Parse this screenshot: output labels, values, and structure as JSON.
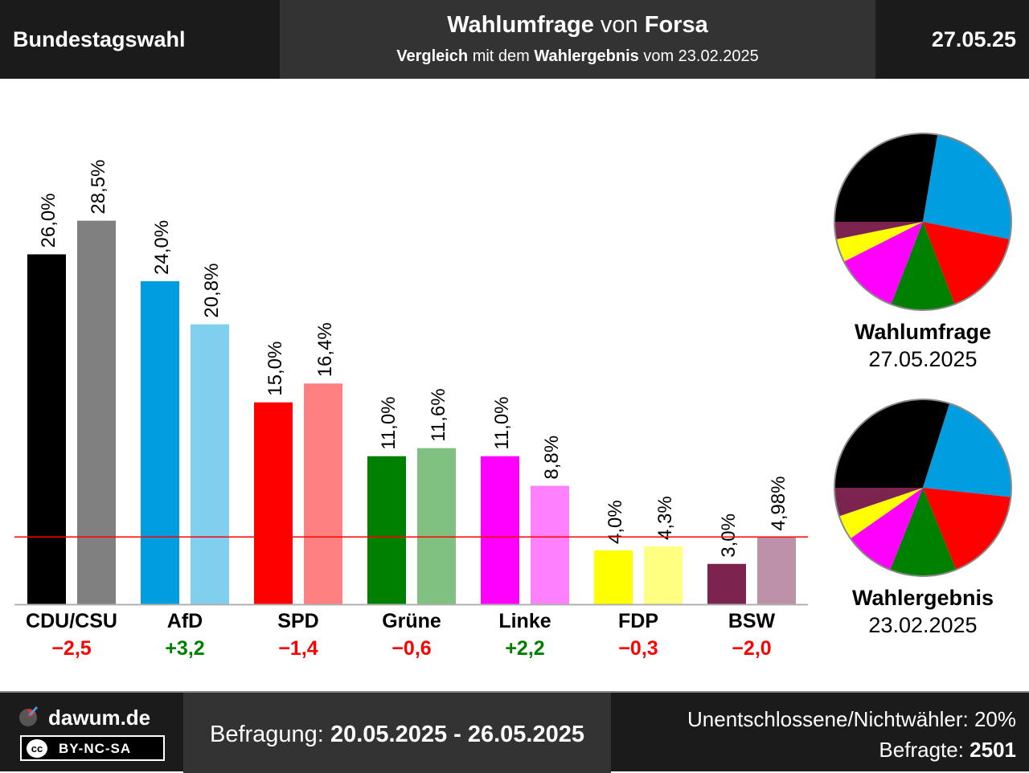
{
  "header": {
    "region": "Bundestagswahl",
    "title_a": "Wahlumfrage",
    "title_b": " von ",
    "title_c": "Forsa",
    "sub_a": "Vergleich",
    "sub_b": " mit dem ",
    "sub_c": "Wahlergebnis",
    "sub_d": " vom 23.02.2025",
    "date": "27.05.25"
  },
  "chart_data": {
    "type": "bar",
    "categories": [
      "CDU/CSU",
      "AfD",
      "SPD",
      "Grüne",
      "Linke",
      "FDP",
      "BSW"
    ],
    "series": [
      {
        "name": "Wahlumfrage",
        "values": [
          26.0,
          24.0,
          15.0,
          11.0,
          11.0,
          4.0,
          3.0
        ],
        "labels": [
          "26,0%",
          "24,0%",
          "15,0%",
          "11,0%",
          "11,0%",
          "4,0%",
          "3,0%"
        ]
      },
      {
        "name": "Wahlergebnis",
        "values": [
          28.5,
          20.8,
          16.4,
          11.6,
          8.8,
          4.3,
          4.98
        ],
        "labels": [
          "28,5%",
          "20,8%",
          "16,4%",
          "11,6%",
          "8,8%",
          "4,3%",
          "4,98%"
        ]
      }
    ],
    "colors_poll": [
      "#000000",
      "#009ee0",
      "#ff0000",
      "#008000",
      "#ff00ff",
      "#ffff00",
      "#7b2450"
    ],
    "colors_result": [
      "#808080",
      "#80cfef",
      "#ff8080",
      "#80c080",
      "#ff80ff",
      "#ffff80",
      "#bd92a8"
    ],
    "diffs": [
      "−2,5",
      "+3,2",
      "−1,4",
      "−0,6",
      "+2,2",
      "−0,3",
      "−2,0"
    ],
    "diff_colors": [
      "#ff0000",
      "#008000",
      "#ff0000",
      "#ff0000",
      "#008000",
      "#ff0000",
      "#ff0000"
    ],
    "threshold": 5,
    "ylim": [
      0,
      30
    ],
    "pies": [
      {
        "title": "Wahlumfrage",
        "date": "27.05.2025",
        "values": [
          26.0,
          24.0,
          15.0,
          11.0,
          11.0,
          4.0,
          3.0
        ]
      },
      {
        "title": "Wahlergebnis",
        "date": "23.02.2025",
        "values": [
          28.5,
          20.8,
          16.4,
          11.6,
          8.8,
          4.3,
          4.98
        ]
      }
    ]
  },
  "footer": {
    "brand": "dawum.de",
    "cc": "cc",
    "license": "BY-NC-SA",
    "survey_label": "Befragung: ",
    "survey_period": "20.05.2025 - 26.05.2025",
    "undecided": "Unentschlossene/Nichtwähler: 20%",
    "respondents_label": "Befragte: ",
    "respondents": "2501"
  }
}
